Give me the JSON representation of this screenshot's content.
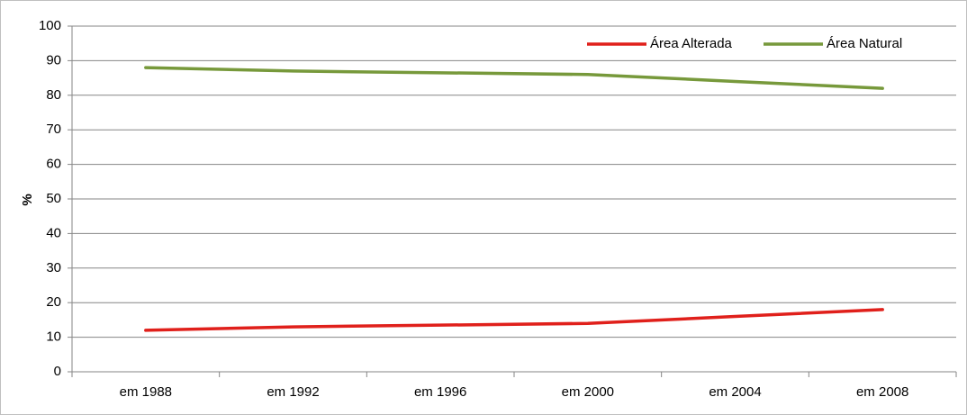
{
  "chart_data": {
    "type": "line",
    "title": "",
    "xlabel": "",
    "ylabel": "%",
    "categories": [
      "em 1988",
      "em 1992",
      "em 1996",
      "em 2000",
      "em 2004",
      "em 2008"
    ],
    "ylim": [
      0,
      100
    ],
    "yticks": [
      "0",
      "10",
      "20",
      "30",
      "40",
      "50",
      "60",
      "70",
      "80",
      "90",
      "100"
    ],
    "grid": true,
    "legend": "top-right",
    "series": [
      {
        "name": "Área Alterada",
        "color": "#e0201b",
        "values": [
          12,
          13,
          13.5,
          14,
          16,
          18
        ]
      },
      {
        "name": "Área Natural",
        "color": "#77993b",
        "values": [
          88,
          87,
          86.5,
          86,
          84,
          82
        ]
      }
    ]
  }
}
